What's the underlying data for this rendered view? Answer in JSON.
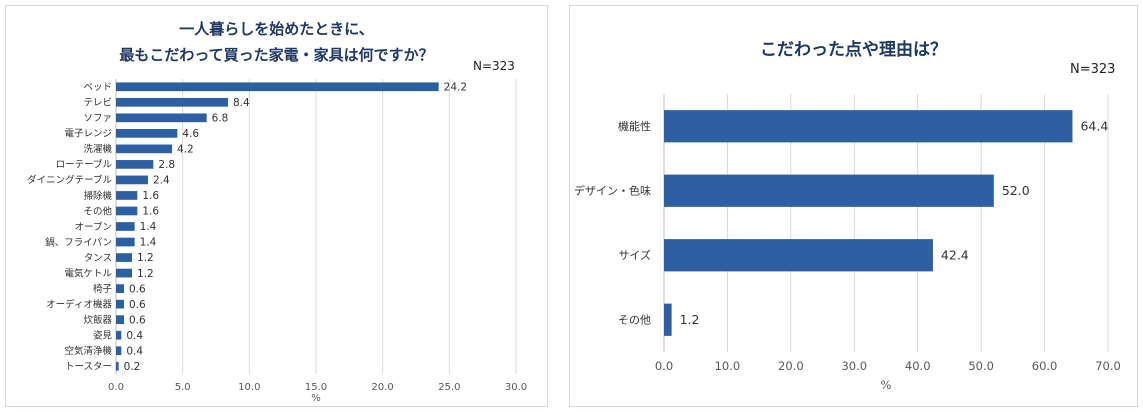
{
  "chart_data": [
    {
      "type": "bar",
      "orientation": "horizontal",
      "title_lines": [
        "一人暮らしを始めたときに、",
        "最もこだわって買った家電・家具は何ですか？"
      ],
      "n_label": "N=323",
      "xlabel": "%",
      "xlim": [
        0,
        30
      ],
      "xticks": [
        "0.0",
        "5.0",
        "10.0",
        "15.0",
        "20.0",
        "25.0",
        "30.0"
      ],
      "grid": true,
      "bar_color": "#2e5fa3",
      "categories": [
        "ベッド",
        "テレビ",
        "ソファ",
        "電子レンジ",
        "洗濯機",
        "ローテーブル",
        "ダイニングテーブル",
        "掃除機",
        "その他",
        "オーブン",
        "鍋、フライパン",
        "タンス",
        "電気ケトル",
        "椅子",
        "オーディオ機器",
        "炊飯器",
        "姿見",
        "空気清浄機",
        "トースター"
      ],
      "values": [
        24.2,
        8.4,
        6.8,
        4.6,
        4.2,
        2.8,
        2.4,
        1.6,
        1.6,
        1.4,
        1.4,
        1.2,
        1.2,
        0.6,
        0.6,
        0.6,
        0.4,
        0.4,
        0.2
      ],
      "value_labels": [
        "24.2",
        "8.4",
        "6.8",
        "4.6",
        "4.2",
        "2.8",
        "2.4",
        "1.6",
        "1.6",
        "1.4",
        "1.4",
        "1.2",
        "1.2",
        "0.6",
        "0.6",
        "0.6",
        "0.4",
        "0.4",
        "0.2"
      ]
    },
    {
      "type": "bar",
      "orientation": "horizontal",
      "title_lines": [
        "こだわった点や理由は？"
      ],
      "n_label": "N=323",
      "xlabel": "%",
      "xlim": [
        0,
        70
      ],
      "xticks": [
        "0.0",
        "10.0",
        "20.0",
        "30.0",
        "40.0",
        "50.0",
        "60.0",
        "70.0"
      ],
      "grid": true,
      "bar_color": "#2e5fa3",
      "categories": [
        "機能性",
        "デザイン・色味",
        "サイズ",
        "その他"
      ],
      "values": [
        64.4,
        52.0,
        42.4,
        1.2
      ],
      "value_labels": [
        "64.4",
        "52.0",
        "42.4",
        "1.2"
      ]
    }
  ]
}
